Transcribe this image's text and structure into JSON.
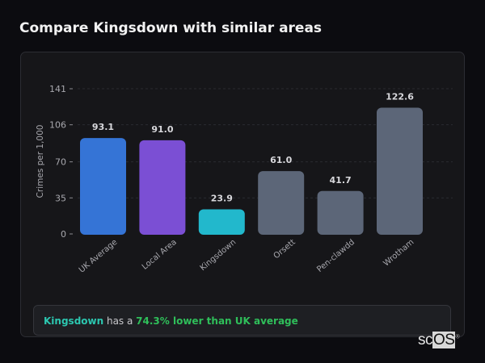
{
  "title": "Compare Kingsdown with similar areas",
  "chart_data": {
    "type": "bar",
    "ylabel": "Crimes per 1,000",
    "xlabel": "",
    "ylim": [
      0,
      141
    ],
    "yticks": [
      0,
      35,
      70,
      106,
      141
    ],
    "grid": true,
    "categories": [
      "UK Average",
      "Local Area",
      "Kingsdown",
      "Orsett",
      "Pen-clawdd",
      "Wrotham"
    ],
    "values": [
      93.1,
      91.0,
      23.9,
      61.0,
      41.7,
      122.6
    ],
    "data_labels": [
      "93.1",
      "91.0",
      "23.9",
      "61.0",
      "41.7",
      "122.6"
    ],
    "colors": [
      "#3574d6",
      "#7b4fd4",
      "#22b8cc",
      "#5c6678",
      "#5c6678",
      "#5c6678"
    ]
  },
  "summary": {
    "area": "Kingsdown",
    "middle": " has a ",
    "comparison": "74.3% lower than UK average"
  },
  "logo": {
    "text": "scOS"
  }
}
